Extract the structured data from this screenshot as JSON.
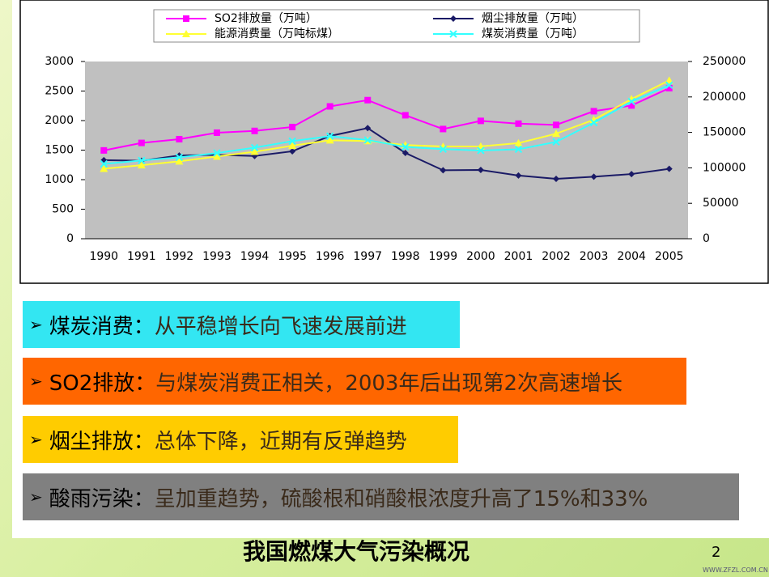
{
  "chart_data": {
    "type": "line",
    "categories": [
      "1990",
      "1991",
      "1992",
      "1993",
      "1994",
      "1995",
      "1996",
      "1997",
      "1998",
      "1999",
      "2000",
      "2001",
      "2002",
      "2003",
      "2004",
      "2005"
    ],
    "series": [
      {
        "name": "SO2排放量（万吨）",
        "color": "#ff00ff",
        "marker": "square",
        "values": [
          1495,
          1622,
          1685,
          1795,
          1825,
          1891,
          2240,
          2346,
          2090,
          1857,
          1995,
          1948,
          1927,
          2159,
          2255,
          2549
        ]
      },
      {
        "name": "烟尘排放量（万吨）",
        "color": "#1a1a66",
        "marker": "diamond",
        "values": [
          1330,
          1320,
          1410,
          1420,
          1400,
          1480,
          1740,
          1873,
          1452,
          1159,
          1165,
          1070,
          1013,
          1049,
          1095,
          1183
        ]
      },
      {
        "name": "能源消费量（万吨标煤）",
        "color": "#ffff33",
        "marker": "triangle",
        "axis": "y2",
        "values": [
          98700,
          103800,
          109200,
          116000,
          122700,
          131200,
          138900,
          137800,
          132200,
          130100,
          130300,
          134900,
          148200,
          167800,
          197000,
          223300
        ]
      },
      {
        "name": "煤炭消费量（万吨）",
        "color": "#33ffff",
        "marker": "cross",
        "axis": "y2",
        "values": [
          105500,
          110400,
          114800,
          120900,
          128500,
          137700,
          144700,
          139200,
          129500,
          126400,
          124500,
          126200,
          136600,
          163700,
          193600,
          216700
        ]
      }
    ],
    "ylim": [
      0,
      3000
    ],
    "yticks": [
      0,
      500,
      1000,
      1500,
      2000,
      2500,
      3000
    ],
    "y2lim": [
      0,
      250000
    ],
    "y2ticks": [
      0,
      50000,
      100000,
      150000,
      200000,
      250000
    ],
    "plot_background": "#c0c0c0"
  },
  "bullets": [
    {
      "label": "煤炭消费：",
      "text": "从平稳增长向飞速发展前进",
      "color": "#33e6f2"
    },
    {
      "label": "SO2排放：",
      "text": "与煤炭消费正相关，2003年后出现第2次高速增长",
      "color": "#ff6600"
    },
    {
      "label": "烟尘排放：",
      "text": "总体下降，近期有反弹趋势",
      "color": "#ffcc00"
    },
    {
      "label": "酸雨污染：",
      "text": "呈加重趋势，硫酸根和硝酸根浓度升高了15%和33%",
      "color": "#808080"
    }
  ],
  "caption": "我国燃煤大气污染概况",
  "page_number": "2",
  "watermark": "WWW.ZFZL.COM.CN"
}
